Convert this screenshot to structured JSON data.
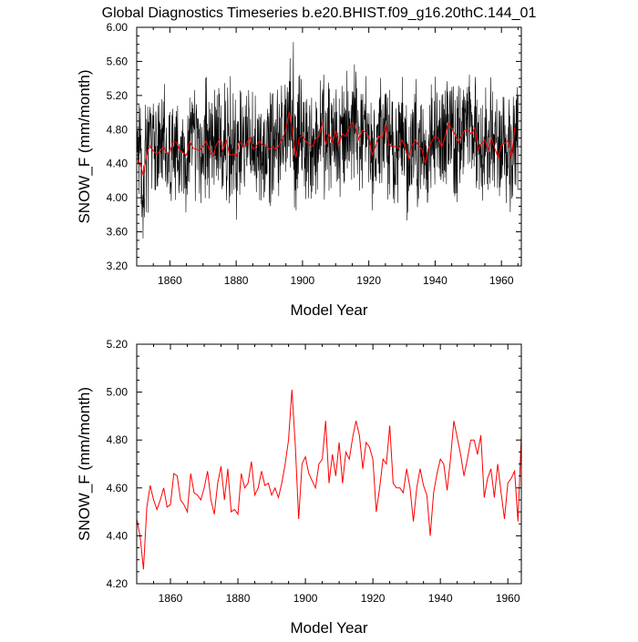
{
  "title": "Global Diagnostics Timeseries b.e20.BHIST.f09_g16.20thC.144_01",
  "chart_data": [
    {
      "type": "line",
      "title": "Global Diagnostics Timeseries b.e20.BHIST.f09_g16.20thC.144_01",
      "xlabel": "Model Year",
      "ylabel": "SNOW_F (mm/month)",
      "xlim": [
        1850,
        1966
      ],
      "ylim": [
        3.2,
        6.0
      ],
      "x_ticks": [
        "1860",
        "1880",
        "1900",
        "1920",
        "1940",
        "1960"
      ],
      "y_ticks": [
        "3.20",
        "3.60",
        "4.00",
        "4.40",
        "4.80",
        "5.20",
        "5.60",
        "6.00"
      ],
      "grid": false,
      "series": [
        {
          "color": "#000000",
          "resolution": "monthly",
          "x_start": 1850,
          "x_end": 1965
        },
        {
          "color": "#ff0000",
          "resolution": "annual"
        }
      ]
    },
    {
      "type": "line",
      "title": "",
      "xlabel": "Model Year",
      "ylabel": "SNOW_F (mm/month)",
      "xlim": [
        1850,
        1964
      ],
      "ylim": [
        4.2,
        5.2
      ],
      "x_ticks": [
        "1860",
        "1880",
        "1900",
        "1920",
        "1940",
        "1960"
      ],
      "y_ticks": [
        "4.20",
        "4.40",
        "4.60",
        "4.80",
        "5.00",
        "5.20"
      ],
      "grid": false,
      "series": [
        {
          "color": "#ff0000",
          "resolution": "annual",
          "x": [
            1850,
            1851,
            1852,
            1853,
            1854,
            1855,
            1856,
            1857,
            1858,
            1859,
            1860,
            1861,
            1862,
            1863,
            1864,
            1865,
            1866,
            1867,
            1868,
            1869,
            1870,
            1871,
            1872,
            1873,
            1874,
            1875,
            1876,
            1877,
            1878,
            1879,
            1880,
            1881,
            1882,
            1883,
            1884,
            1885,
            1886,
            1887,
            1888,
            1889,
            1890,
            1891,
            1892,
            1893,
            1894,
            1895,
            1896,
            1897,
            1898,
            1899,
            1900,
            1901,
            1902,
            1903,
            1904,
            1905,
            1906,
            1907,
            1908,
            1909,
            1910,
            1911,
            1912,
            1913,
            1914,
            1915,
            1916,
            1917,
            1918,
            1919,
            1920,
            1921,
            1922,
            1923,
            1924,
            1925,
            1926,
            1927,
            1928,
            1929,
            1930,
            1931,
            1932,
            1933,
            1934,
            1935,
            1936,
            1937,
            1938,
            1939,
            1940,
            1941,
            1942,
            1943,
            1944,
            1945,
            1946,
            1947,
            1948,
            1949,
            1950,
            1951,
            1952,
            1953,
            1954,
            1955,
            1956,
            1957,
            1958,
            1959,
            1960,
            1961,
            1962,
            1963,
            1964
          ],
          "y": [
            4.47,
            4.4,
            4.26,
            4.52,
            4.61,
            4.55,
            4.51,
            4.55,
            4.6,
            4.52,
            4.53,
            4.66,
            4.65,
            4.55,
            4.53,
            4.5,
            4.66,
            4.58,
            4.57,
            4.55,
            4.6,
            4.67,
            4.55,
            4.49,
            4.62,
            4.69,
            4.55,
            4.68,
            4.5,
            4.51,
            4.49,
            4.66,
            4.6,
            4.62,
            4.71,
            4.57,
            4.6,
            4.67,
            4.61,
            4.62,
            4.57,
            4.6,
            4.56,
            4.62,
            4.7,
            4.8,
            5.01,
            4.78,
            4.47,
            4.7,
            4.73,
            4.66,
            4.63,
            4.6,
            4.7,
            4.72,
            4.88,
            4.62,
            4.74,
            4.65,
            4.79,
            4.62,
            4.75,
            4.72,
            4.81,
            4.88,
            4.82,
            4.68,
            4.79,
            4.77,
            4.72,
            4.5,
            4.6,
            4.72,
            4.7,
            4.86,
            4.62,
            4.6,
            4.6,
            4.58,
            4.68,
            4.6,
            4.46,
            4.6,
            4.68,
            4.61,
            4.57,
            4.4,
            4.58,
            4.66,
            4.72,
            4.7,
            4.59,
            4.72,
            4.88,
            4.81,
            4.74,
            4.65,
            4.72,
            4.8,
            4.8,
            4.74,
            4.82,
            4.56,
            4.64,
            4.68,
            4.56,
            4.7,
            4.58,
            4.47,
            4.62,
            4.64,
            4.67,
            4.46,
            4.82
          ]
        }
      ]
    }
  ]
}
